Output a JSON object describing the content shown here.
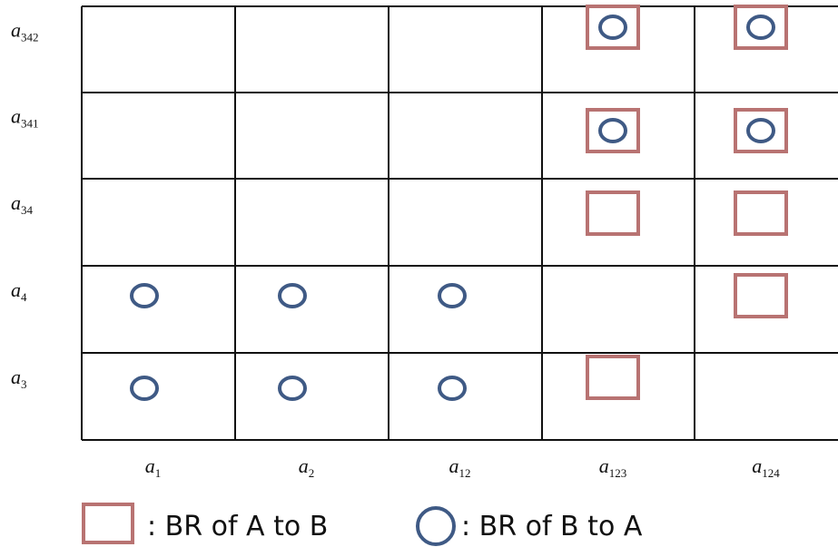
{
  "diagram": {
    "rows": [
      {
        "var": "a",
        "sub": "342"
      },
      {
        "var": "a",
        "sub": "341"
      },
      {
        "var": "a",
        "sub": "34"
      },
      {
        "var": "a",
        "sub": "4"
      },
      {
        "var": "a",
        "sub": "3"
      }
    ],
    "columns": [
      {
        "var": "a",
        "sub": "1"
      },
      {
        "var": "a",
        "sub": "2"
      },
      {
        "var": "a",
        "sub": "12"
      },
      {
        "var": "a",
        "sub": "123"
      },
      {
        "var": "a",
        "sub": "124"
      }
    ],
    "squares": [
      [
        0,
        3
      ],
      [
        0,
        4
      ],
      [
        1,
        3
      ],
      [
        1,
        4
      ],
      [
        2,
        3
      ],
      [
        2,
        4
      ],
      [
        3,
        4
      ],
      [
        4,
        3
      ]
    ],
    "circles": [
      [
        0,
        3
      ],
      [
        0,
        4
      ],
      [
        1,
        3
      ],
      [
        1,
        4
      ],
      [
        3,
        0
      ],
      [
        3,
        1
      ],
      [
        3,
        2
      ],
      [
        4,
        0
      ],
      [
        4,
        1
      ],
      [
        4,
        2
      ]
    ],
    "colors": {
      "square": "#b87372",
      "circle": "#3f5a85",
      "grid": "#111111"
    }
  },
  "legend": {
    "square_label": ": BR of A to B",
    "circle_label": ": BR of B to A"
  }
}
